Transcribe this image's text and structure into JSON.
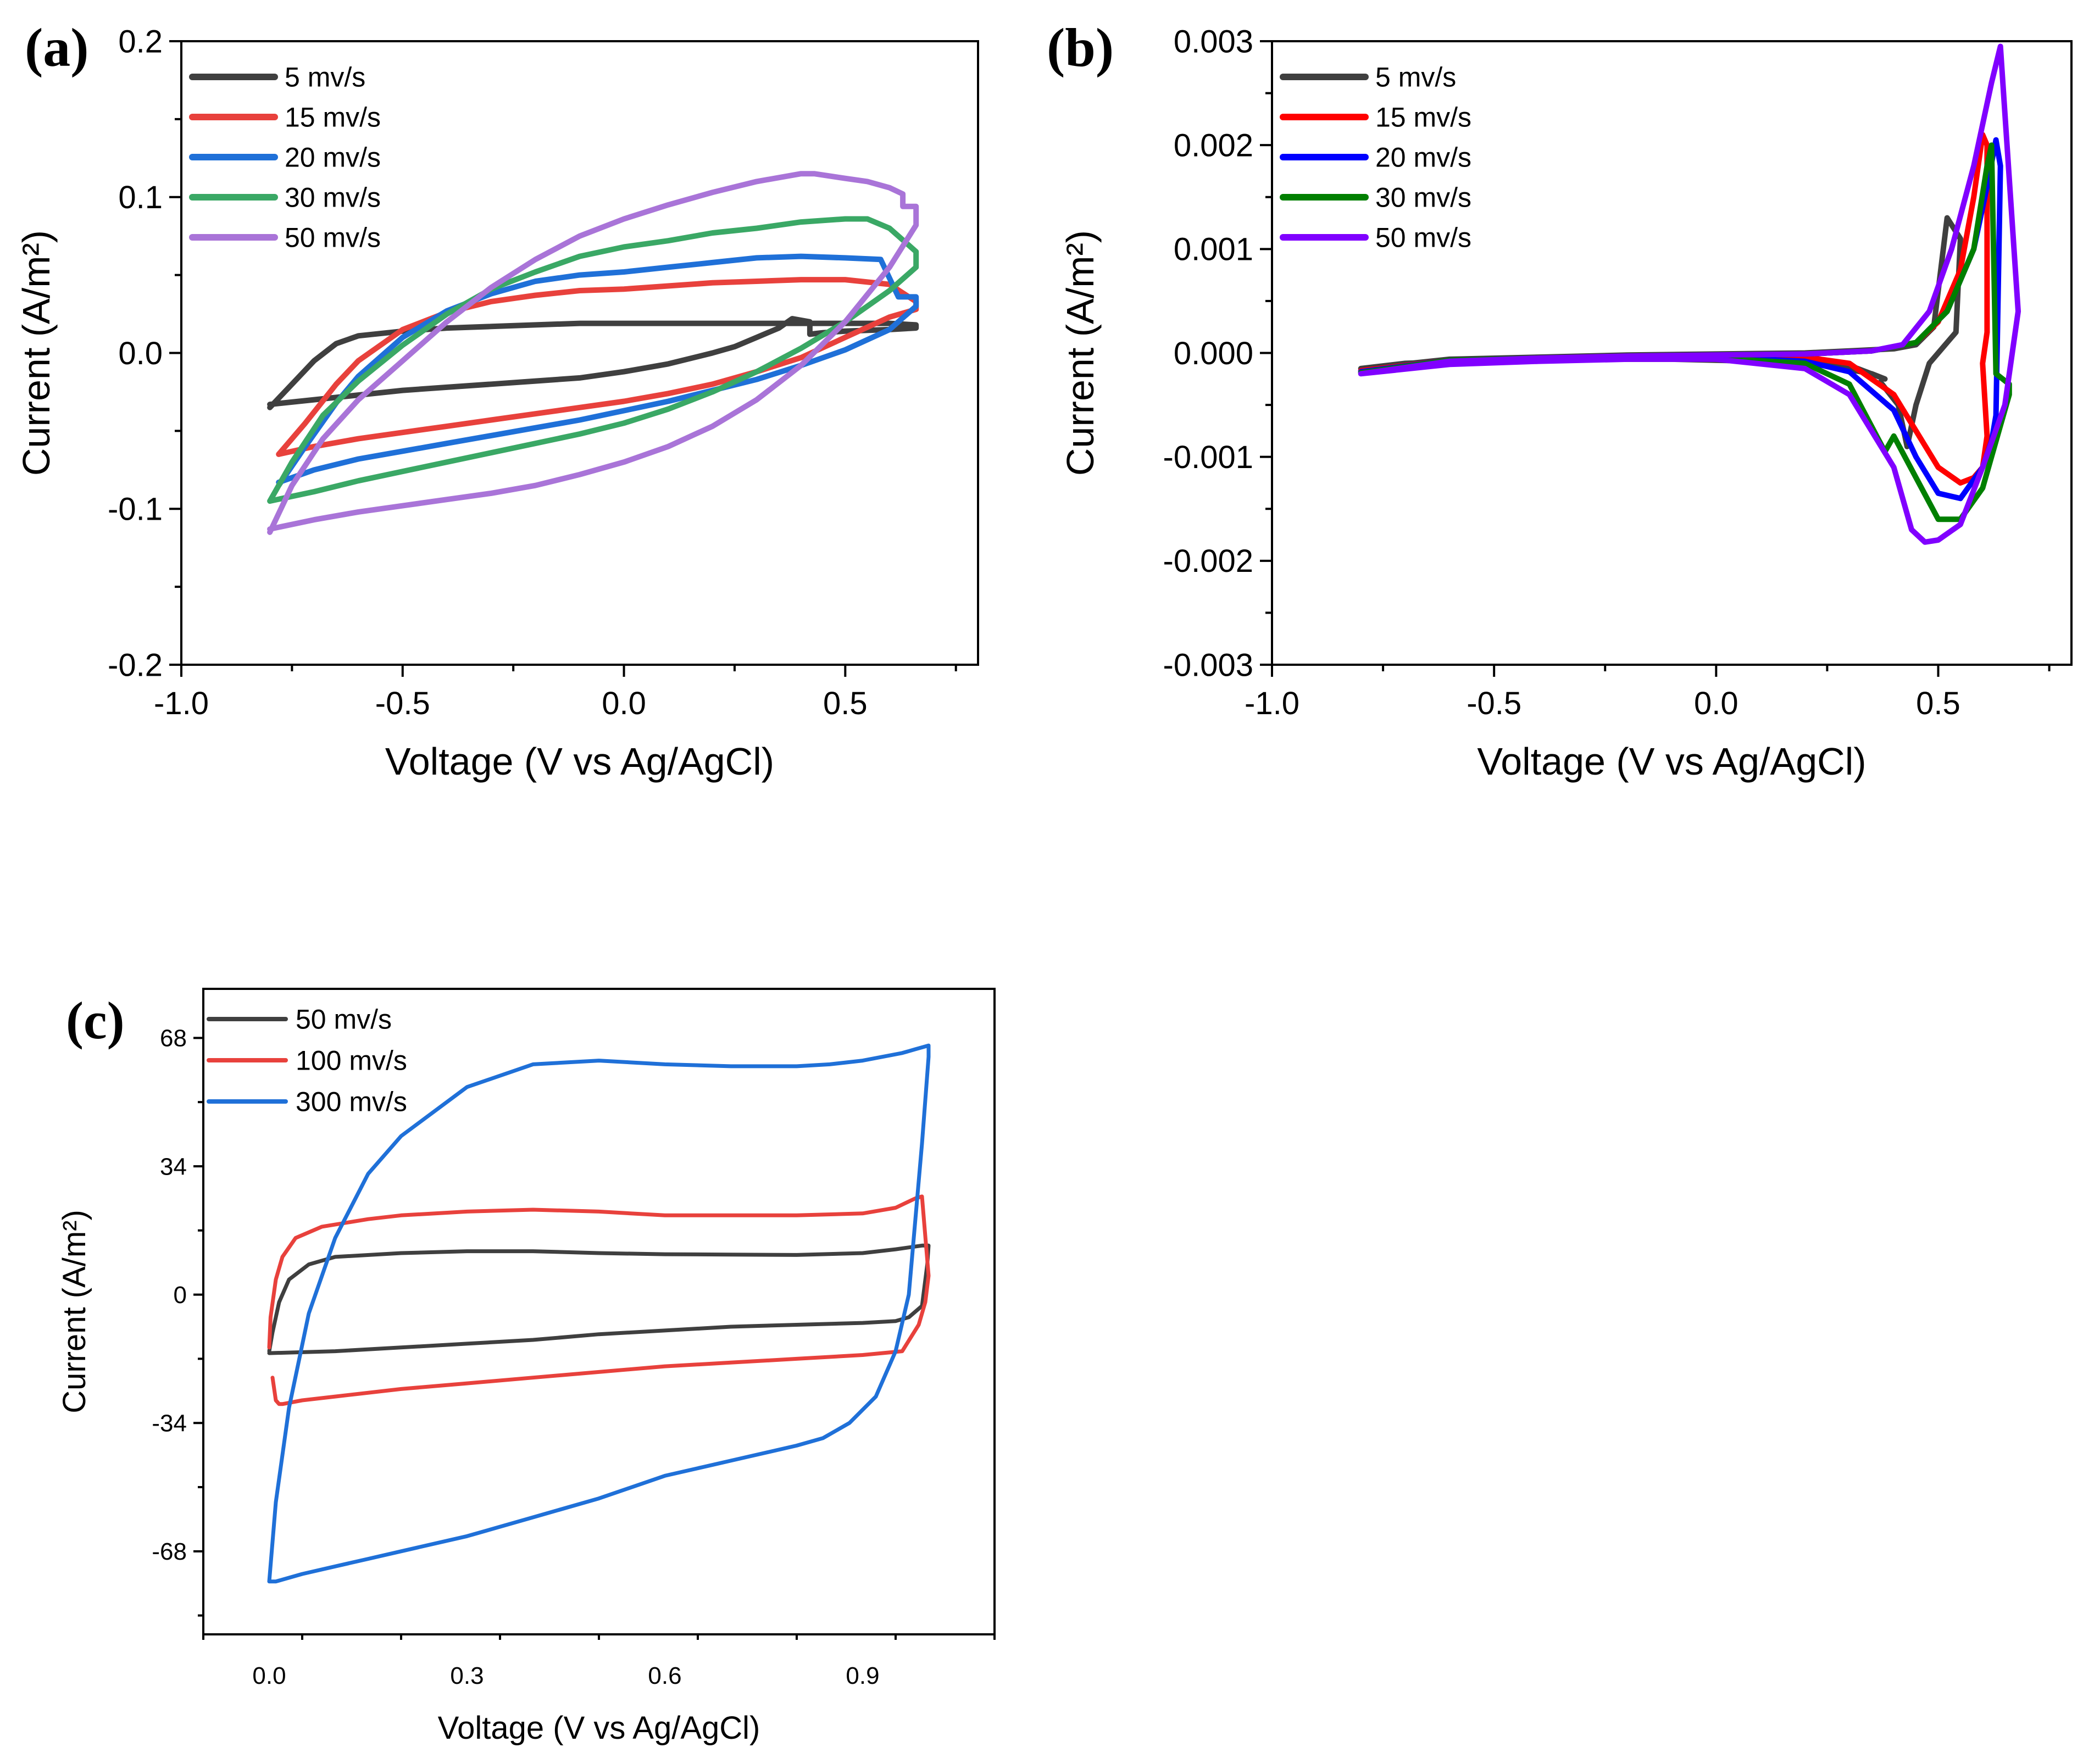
{
  "chart_data": [
    {
      "id": "a",
      "type": "line",
      "panel_label": "(a)",
      "xlabel": "Voltage (V vs Ag/AgCl)",
      "ylabel": "Current (A/m²)",
      "xlim": [
        -1.0,
        0.8
      ],
      "ylim": [
        -0.2,
        0.2
      ],
      "xticks": [
        -1.0,
        -0.5,
        0.0,
        0.5
      ],
      "xtick_labels": [
        "-1.0",
        "-0.5",
        "0.0",
        "0.5"
      ],
      "yticks": [
        -0.2,
        -0.1,
        0.0,
        0.1,
        0.2
      ],
      "ytick_labels": [
        "-0.2",
        "-0.1",
        "0.0",
        "0.1",
        "0.2"
      ],
      "legend_position": "top-left",
      "series": [
        {
          "name": "5 mv/s",
          "color": "#3f3f3f",
          "x": [
            -0.8,
            -0.75,
            -0.7,
            -0.65,
            -0.6,
            -0.5,
            -0.4,
            -0.3,
            -0.2,
            -0.1,
            0.0,
            0.1,
            0.2,
            0.3,
            0.4,
            0.5,
            0.6,
            0.66,
            0.66,
            0.6,
            0.5,
            0.45,
            0.42,
            0.42,
            0.38,
            0.35,
            0.3,
            0.25,
            0.2,
            0.1,
            0.0,
            -0.1,
            -0.2,
            -0.3,
            -0.4,
            -0.5,
            -0.6,
            -0.7,
            -0.8
          ],
          "y": [
            -0.035,
            -0.02,
            -0.005,
            0.006,
            0.011,
            0.014,
            0.016,
            0.017,
            0.018,
            0.019,
            0.019,
            0.019,
            0.019,
            0.019,
            0.019,
            0.019,
            0.019,
            0.018,
            0.016,
            0.015,
            0.014,
            0.013,
            0.012,
            0.02,
            0.022,
            0.016,
            0.01,
            0.004,
            0.0,
            -0.007,
            -0.012,
            -0.016,
            -0.018,
            -0.02,
            -0.022,
            -0.024,
            -0.027,
            -0.03,
            -0.033
          ]
        },
        {
          "name": "15 mv/s",
          "color": "#e8413c",
          "x": [
            -0.78,
            -0.72,
            -0.65,
            -0.6,
            -0.5,
            -0.4,
            -0.3,
            -0.2,
            -0.1,
            0.0,
            0.1,
            0.2,
            0.3,
            0.4,
            0.5,
            0.6,
            0.66,
            0.66,
            0.6,
            0.5,
            0.4,
            0.3,
            0.2,
            0.1,
            0.0,
            -0.1,
            -0.2,
            -0.3,
            -0.4,
            -0.5,
            -0.6,
            -0.7,
            -0.78
          ],
          "y": [
            -0.065,
            -0.045,
            -0.02,
            -0.005,
            0.015,
            0.026,
            0.033,
            0.037,
            0.04,
            0.041,
            0.043,
            0.045,
            0.046,
            0.047,
            0.047,
            0.044,
            0.033,
            0.028,
            0.023,
            0.01,
            -0.003,
            -0.012,
            -0.02,
            -0.026,
            -0.031,
            -0.035,
            -0.039,
            -0.043,
            -0.047,
            -0.051,
            -0.055,
            -0.06,
            -0.065
          ]
        },
        {
          "name": "20 mv/s",
          "color": "#1f70d8",
          "x": [
            -0.78,
            -0.72,
            -0.65,
            -0.6,
            -0.5,
            -0.4,
            -0.3,
            -0.2,
            -0.1,
            0.0,
            0.1,
            0.2,
            0.3,
            0.4,
            0.5,
            0.58,
            0.62,
            0.66,
            0.66,
            0.6,
            0.5,
            0.4,
            0.3,
            0.2,
            0.1,
            0.0,
            -0.1,
            -0.2,
            -0.3,
            -0.4,
            -0.5,
            -0.6,
            -0.7,
            -0.78
          ],
          "y": [
            -0.085,
            -0.06,
            -0.032,
            -0.015,
            0.01,
            0.027,
            0.038,
            0.046,
            0.05,
            0.052,
            0.055,
            0.058,
            0.061,
            0.062,
            0.061,
            0.06,
            0.036,
            0.036,
            0.03,
            0.015,
            0.002,
            -0.008,
            -0.017,
            -0.024,
            -0.031,
            -0.037,
            -0.043,
            -0.048,
            -0.053,
            -0.058,
            -0.063,
            -0.068,
            -0.075,
            -0.083
          ]
        },
        {
          "name": "30 mv/s",
          "color": "#3aa865",
          "x": [
            -0.8,
            -0.75,
            -0.68,
            -0.6,
            -0.5,
            -0.4,
            -0.3,
            -0.2,
            -0.1,
            0.0,
            0.1,
            0.2,
            0.3,
            0.4,
            0.5,
            0.55,
            0.6,
            0.64,
            0.66,
            0.66,
            0.6,
            0.5,
            0.4,
            0.3,
            0.2,
            0.1,
            0.0,
            -0.1,
            -0.2,
            -0.3,
            -0.4,
            -0.5,
            -0.6,
            -0.7,
            -0.8
          ],
          "y": [
            -0.095,
            -0.07,
            -0.04,
            -0.018,
            0.005,
            0.025,
            0.041,
            0.052,
            0.062,
            0.068,
            0.072,
            0.077,
            0.08,
            0.084,
            0.086,
            0.086,
            0.08,
            0.07,
            0.065,
            0.055,
            0.04,
            0.02,
            0.003,
            -0.012,
            -0.025,
            -0.036,
            -0.045,
            -0.052,
            -0.058,
            -0.064,
            -0.07,
            -0.076,
            -0.082,
            -0.089,
            -0.095
          ]
        },
        {
          "name": "50 mv/s",
          "color": "#a974d8",
          "x": [
            -0.8,
            -0.75,
            -0.68,
            -0.6,
            -0.5,
            -0.4,
            -0.3,
            -0.2,
            -0.1,
            0.0,
            0.1,
            0.2,
            0.3,
            0.4,
            0.43,
            0.5,
            0.55,
            0.6,
            0.63,
            0.63,
            0.66,
            0.66,
            0.6,
            0.5,
            0.4,
            0.3,
            0.2,
            0.1,
            0.0,
            -0.1,
            -0.2,
            -0.3,
            -0.4,
            -0.5,
            -0.6,
            -0.7,
            -0.8
          ],
          "y": [
            -0.115,
            -0.085,
            -0.055,
            -0.03,
            -0.005,
            0.02,
            0.042,
            0.06,
            0.075,
            0.086,
            0.095,
            0.103,
            0.11,
            0.115,
            0.115,
            0.112,
            0.11,
            0.106,
            0.102,
            0.094,
            0.094,
            0.082,
            0.055,
            0.02,
            -0.008,
            -0.03,
            -0.047,
            -0.06,
            -0.07,
            -0.078,
            -0.085,
            -0.09,
            -0.094,
            -0.098,
            -0.102,
            -0.107,
            -0.113
          ]
        }
      ]
    },
    {
      "id": "b",
      "type": "line",
      "panel_label": "(b)",
      "xlabel": "Voltage (V vs Ag/AgCl)",
      "ylabel": "Current (A/m²)",
      "xlim": [
        -1.0,
        0.8
      ],
      "ylim": [
        -0.003,
        0.003
      ],
      "xticks": [
        -1.0,
        -0.5,
        0.0,
        0.5
      ],
      "xtick_labels": [
        "-1.0",
        "-0.5",
        "0.0",
        "0.5"
      ],
      "yticks": [
        -0.003,
        -0.002,
        -0.001,
        0.0,
        0.001,
        0.002,
        0.003
      ],
      "ytick_labels": [
        "-0.003",
        "-0.002",
        "-0.001",
        "0.000",
        "0.001",
        "0.002",
        "0.003"
      ],
      "legend_position": "top-left",
      "series": [
        {
          "name": "5 mv/s",
          "color": "#3f3f3f",
          "x": [
            -0.8,
            -0.6,
            -0.4,
            -0.2,
            0.0,
            0.2,
            0.3,
            0.38,
            0.35,
            0.25,
            0.1,
            -0.1,
            -0.3,
            -0.5,
            -0.7,
            -0.8,
            -0.8,
            -0.6,
            -0.4,
            -0.2,
            0.0,
            0.2,
            0.3,
            0.4,
            0.45,
            0.49,
            0.52,
            0.55,
            0.54,
            0.48,
            0.45,
            0.43,
            0.41,
            0.37
          ],
          "y": [
            -0.00015,
            -8e-05,
            -6e-05,
            -5e-05,
            -5e-05,
            -7e-05,
            -0.00012,
            -0.00025,
            -0.0002,
            -0.00012,
            -8e-05,
            -6e-05,
            -6e-05,
            -7e-05,
            -0.0001,
            -0.00015,
            -0.00015,
            -6e-05,
            -4e-05,
            -2e-05,
            -1e-05,
            0.0,
            2e-05,
            4e-05,
            8e-05,
            0.00025,
            0.0013,
            0.0011,
            0.0002,
            -0.0001,
            -0.0005,
            -0.0009,
            -0.0005,
            -0.00028
          ]
        },
        {
          "name": "15 mv/s",
          "color": "#ff0000",
          "x": [
            -0.8,
            -0.6,
            -0.4,
            -0.2,
            0.0,
            0.2,
            0.35,
            0.45,
            0.5,
            0.55,
            0.58,
            0.6,
            0.61,
            0.61,
            0.6,
            0.61,
            0.6,
            0.58,
            0.55,
            0.5,
            0.45,
            0.4,
            0.3,
            0.2,
            0.0,
            -0.2,
            -0.4,
            -0.6,
            -0.8
          ],
          "y": [
            -0.00017,
            -7e-05,
            -5e-05,
            -3e-05,
            -2e-05,
            -1e-05,
            2e-05,
            0.0001,
            0.0003,
            0.0008,
            0.0015,
            0.0021,
            0.002,
            0.0002,
            -0.0001,
            -0.0008,
            -0.0011,
            -0.0012,
            -0.00125,
            -0.0011,
            -0.00075,
            -0.0004,
            -0.0001,
            -4e-05,
            -3e-05,
            -3e-05,
            -5e-05,
            -8e-05,
            -0.00017
          ]
        },
        {
          "name": "20 mv/s",
          "color": "#0000ff",
          "x": [
            -0.8,
            -0.6,
            -0.4,
            -0.2,
            0.0,
            0.2,
            0.35,
            0.45,
            0.52,
            0.58,
            0.61,
            0.63,
            0.64,
            0.63,
            0.62,
            0.6,
            0.55,
            0.5,
            0.45,
            0.4,
            0.3,
            0.2,
            0.0,
            -0.2,
            -0.4,
            -0.6,
            -0.8
          ],
          "y": [
            -0.00018,
            -7e-05,
            -5e-05,
            -3e-05,
            -2e-05,
            -1e-05,
            2e-05,
            0.0001,
            0.0004,
            0.001,
            0.0016,
            0.00205,
            0.0018,
            -0.0006,
            -0.00085,
            -0.0011,
            -0.0014,
            -0.00135,
            -0.001,
            -0.00055,
            -0.00018,
            -8e-05,
            -4e-05,
            -4e-05,
            -6e-05,
            -9e-05,
            -0.00018
          ]
        },
        {
          "name": "30 mv/s",
          "color": "#007f00",
          "x": [
            -0.8,
            -0.6,
            -0.4,
            -0.2,
            0.0,
            0.2,
            0.35,
            0.45,
            0.52,
            0.58,
            0.61,
            0.62,
            0.63,
            0.66,
            0.66,
            0.6,
            0.55,
            0.5,
            0.45,
            0.4,
            0.38,
            0.3,
            0.2,
            0.0,
            -0.2,
            -0.4,
            -0.6,
            -0.8
          ],
          "y": [
            -0.00019,
            -7e-05,
            -5e-05,
            -3e-05,
            -2e-05,
            -1e-05,
            2e-05,
            0.0001,
            0.0004,
            0.001,
            0.0018,
            0.002,
            -0.0002,
            -0.0003,
            -0.0004,
            -0.0013,
            -0.0016,
            -0.0016,
            -0.0012,
            -0.0008,
            -0.00095,
            -0.0003,
            -0.0001,
            -5e-05,
            -5e-05,
            -7e-05,
            -0.0001,
            -0.00019
          ]
        },
        {
          "name": "50 mv/s",
          "color": "#8000ff",
          "x": [
            -0.8,
            -0.6,
            -0.4,
            -0.2,
            0.0,
            0.2,
            0.35,
            0.42,
            0.48,
            0.53,
            0.58,
            0.62,
            0.64,
            0.68,
            0.65,
            0.6,
            0.55,
            0.5,
            0.47,
            0.44,
            0.4,
            0.3,
            0.2,
            0.0,
            -0.2,
            -0.4,
            -0.6,
            -0.8
          ],
          "y": [
            -0.0002,
            -8e-05,
            -5e-05,
            -3e-05,
            -2e-05,
            -1e-05,
            2e-05,
            8e-05,
            0.0004,
            0.001,
            0.0018,
            0.0026,
            0.00295,
            0.0004,
            -0.0005,
            -0.0011,
            -0.00165,
            -0.0018,
            -0.00182,
            -0.0017,
            -0.0011,
            -0.0004,
            -0.00015,
            -6e-05,
            -6e-05,
            -8e-05,
            -0.00011,
            -0.0002
          ]
        }
      ]
    },
    {
      "id": "c",
      "type": "line",
      "panel_label": "(c)",
      "xlabel": "Voltage (V vs Ag/AgCl)",
      "ylabel": "Current (A/m²)",
      "xlim": [
        -0.1,
        1.1
      ],
      "ylim": [
        -90,
        81
      ],
      "xticks": [
        0.0,
        0.3,
        0.6,
        0.9
      ],
      "xtick_labels": [
        "0.0",
        "0.3",
        "0.6",
        "0.9"
      ],
      "yticks": [
        -68,
        -34,
        0,
        34,
        68
      ],
      "ytick_labels": [
        "-68",
        "-34",
        "0",
        "34",
        "68"
      ],
      "legend_position": "top-left",
      "series": [
        {
          "name": "50 mv/s",
          "color": "#3f3f3f",
          "x": [
            0.0,
            0.005,
            0.015,
            0.03,
            0.06,
            0.1,
            0.2,
            0.3,
            0.4,
            0.5,
            0.6,
            0.7,
            0.8,
            0.9,
            0.95,
            0.99,
            1.0,
            0.998,
            0.99,
            0.97,
            0.95,
            0.9,
            0.8,
            0.7,
            0.6,
            0.5,
            0.4,
            0.3,
            0.2,
            0.1,
            0.0
          ],
          "y": [
            -15,
            -10,
            -2,
            4,
            8,
            10,
            11,
            11.5,
            11.5,
            11,
            10.7,
            10.6,
            10.5,
            11,
            12,
            13,
            13,
            8,
            -3,
            -6,
            -7,
            -7.5,
            -8,
            -8.5,
            -9.5,
            -10.5,
            -12,
            -13,
            -14,
            -15,
            -15.5
          ]
        },
        {
          "name": "100 mv/s",
          "color": "#e8413c",
          "x": [
            0.0,
            0.002,
            0.01,
            0.02,
            0.04,
            0.08,
            0.15,
            0.2,
            0.3,
            0.4,
            0.5,
            0.6,
            0.7,
            0.8,
            0.9,
            0.95,
            0.98,
            0.99,
            1.0,
            0.995,
            0.985,
            0.96,
            0.9,
            0.8,
            0.7,
            0.6,
            0.5,
            0.4,
            0.3,
            0.2,
            0.1,
            0.05,
            0.02,
            0.015,
            0.01,
            0.005
          ],
          "y": [
            -14,
            -6,
            4,
            10,
            15,
            18,
            20,
            21,
            22,
            22.5,
            22,
            21,
            21,
            21,
            21.5,
            23,
            25.5,
            26,
            5,
            -2,
            -8,
            -15,
            -16,
            -17,
            -18,
            -19,
            -20.5,
            -22,
            -23.5,
            -25,
            -27,
            -28,
            -29,
            -29,
            -28,
            -22
          ]
        },
        {
          "name": "300 mv/s",
          "color": "#1f70d8",
          "x": [
            0.0,
            0.01,
            0.03,
            0.06,
            0.1,
            0.15,
            0.2,
            0.3,
            0.4,
            0.5,
            0.6,
            0.7,
            0.8,
            0.85,
            0.9,
            0.93,
            0.96,
            0.98,
            1.0,
            1.0,
            0.99,
            0.98,
            0.97,
            0.95,
            0.92,
            0.88,
            0.84,
            0.8,
            0.7,
            0.6,
            0.5,
            0.4,
            0.3,
            0.2,
            0.15,
            0.1,
            0.05,
            0.02,
            0.01,
            0.0
          ],
          "y": [
            -76,
            -55,
            -30,
            -5,
            15,
            32,
            42,
            55,
            61,
            62,
            61,
            60.5,
            60.5,
            61,
            62,
            63,
            64,
            65,
            66,
            63,
            40,
            20,
            0,
            -15,
            -27,
            -34,
            -38,
            -40,
            -44,
            -48,
            -54,
            -59,
            -64,
            -68,
            -70,
            -72,
            -74,
            -75.5,
            -76,
            -76
          ]
        }
      ]
    }
  ]
}
